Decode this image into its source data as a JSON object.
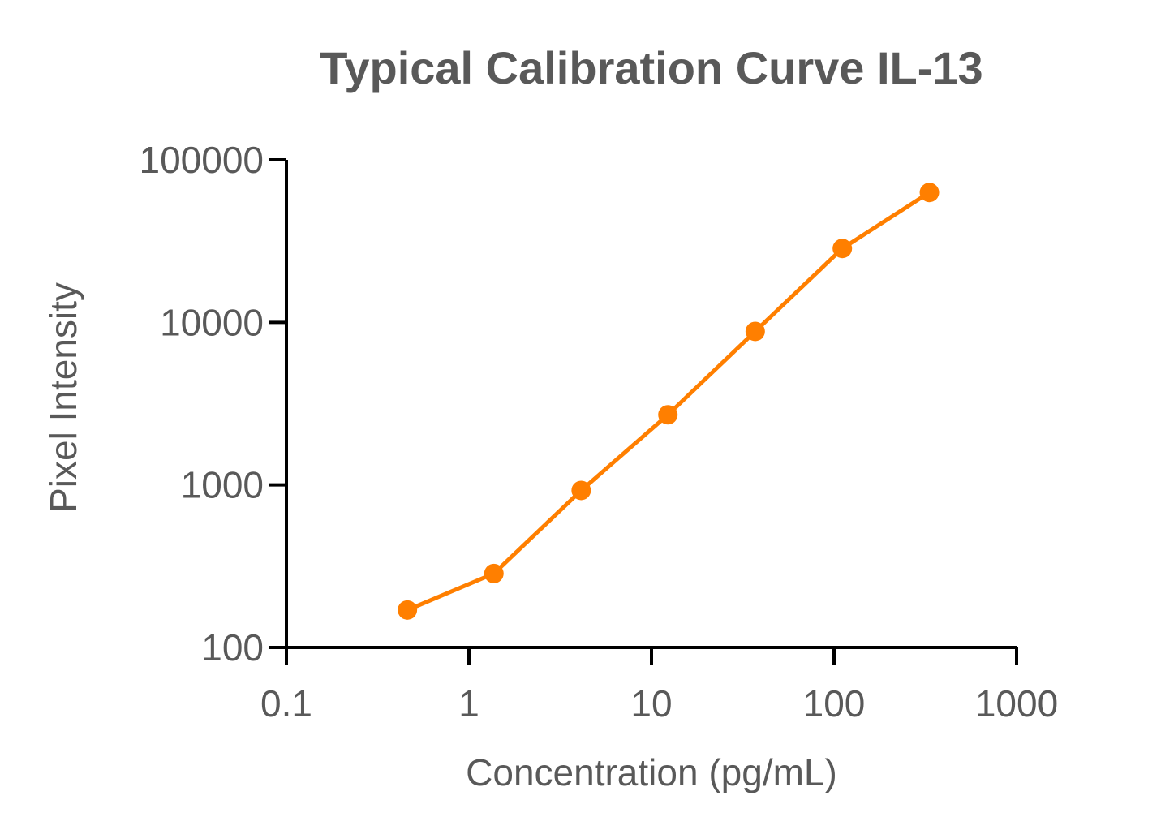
{
  "chart_data": {
    "type": "line",
    "title": "Typical Calibration Curve IL-13",
    "xlabel": "Concentration (pg/mL)",
    "ylabel": "Pixel Intensity",
    "xscale": "log",
    "yscale": "log",
    "xlim": [
      0.1,
      1000
    ],
    "ylim": [
      100,
      100000
    ],
    "xticks": [
      "0.1",
      "1",
      "10",
      "100",
      "1000"
    ],
    "yticks": [
      "100",
      "1000",
      "10000",
      "100000"
    ],
    "grid": false,
    "series": [
      {
        "color": "#FF7F00",
        "marker": "circle",
        "x": [
          0.46,
          1.37,
          4.12,
          12.3,
          37.0,
          111,
          333
        ],
        "y": [
          170,
          285,
          925,
          2700,
          8800,
          28500,
          63000
        ]
      }
    ]
  }
}
